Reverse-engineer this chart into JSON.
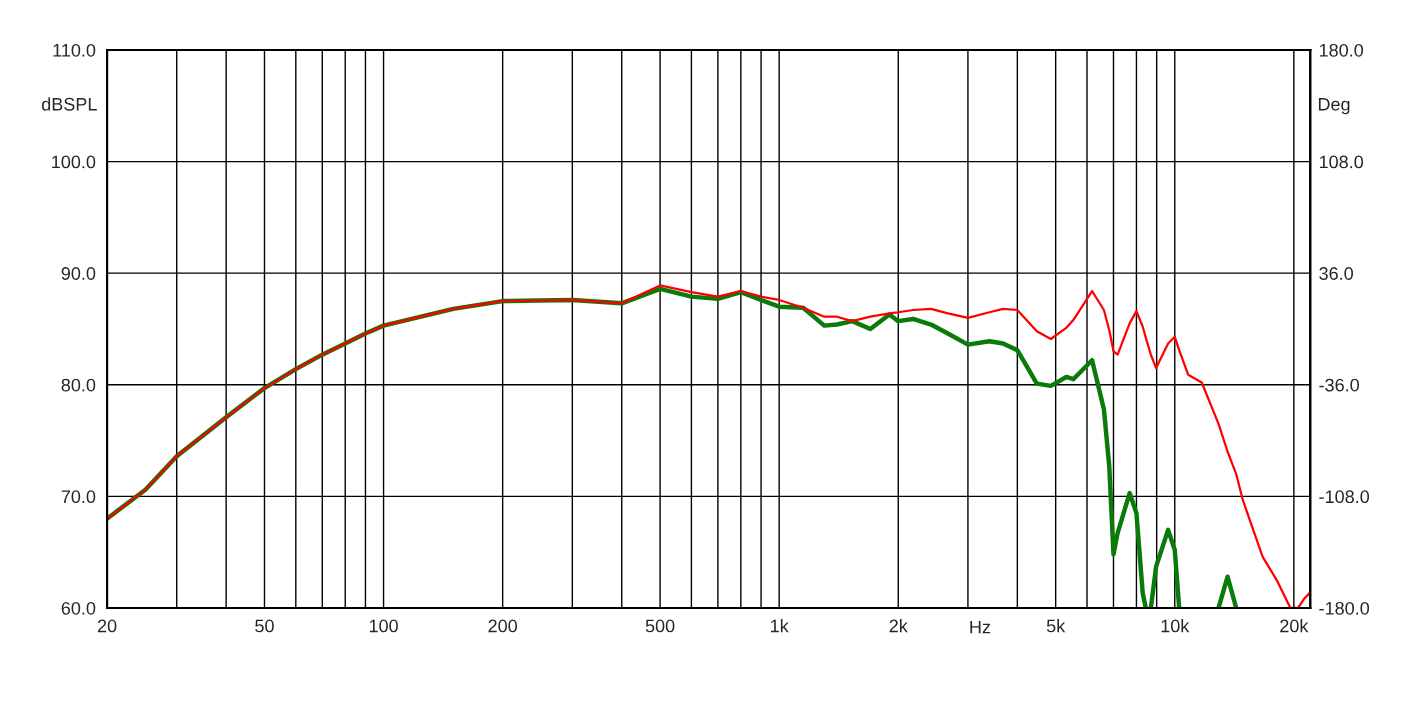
{
  "chart_data": {
    "type": "line",
    "xlabel": "Hz",
    "ylabel": "dBSPL",
    "y2label": "Deg",
    "x": [
      20,
      25,
      30,
      40,
      50,
      60,
      70,
      80,
      90,
      100,
      150,
      200,
      300,
      400,
      500,
      600,
      700,
      800,
      900,
      1000,
      1150,
      1300,
      1400,
      1530,
      1700,
      1900,
      2000,
      2180,
      2420,
      2670,
      3000,
      3400,
      3680,
      4000,
      4480,
      4860,
      5320,
      5540,
      6180,
      6620,
      6830,
      7000,
      7170,
      7690,
      8000,
      8300,
      8450,
      8600,
      8700,
      8970,
      9620,
      10000,
      10260,
      10810,
      11700,
      12900,
      13600,
      14300,
      14850,
      16670,
      18100,
      19600,
      20500,
      21200,
      22000
    ],
    "series": [
      {
        "color": "#ff0000",
        "values": [
          68.0,
          70.6,
          73.6,
          77.1,
          79.7,
          81.4,
          82.7,
          83.7,
          84.6,
          85.3,
          86.8,
          87.5,
          87.6,
          87.3,
          88.9,
          88.3,
          87.9,
          88.4,
          87.9,
          87.6,
          86.9,
          86.1,
          86.1,
          85.7,
          86.1,
          86.4,
          86.5,
          86.7,
          86.8,
          86.4,
          86.0,
          86.5,
          86.8,
          86.7,
          84.8,
          84.1,
          85.1,
          85.8,
          88.4,
          86.7,
          84.9,
          83.0,
          82.7,
          85.5,
          86.6,
          85.2,
          84.2,
          83.3,
          82.7,
          81.5,
          83.7,
          84.3,
          83.1,
          80.9,
          80.2,
          76.5,
          74.0,
          72.0,
          69.7,
          64.6,
          62.5,
          60.0,
          60.0,
          60.8,
          61.4
        ]
      },
      {
        "color": "#0a7a0a",
        "values": [
          68.0,
          70.6,
          73.6,
          77.1,
          79.7,
          81.4,
          82.7,
          83.7,
          84.6,
          85.3,
          86.8,
          87.5,
          87.6,
          87.3,
          88.6,
          87.9,
          87.7,
          88.3,
          87.6,
          87.0,
          86.9,
          85.3,
          85.4,
          85.7,
          85.0,
          86.3,
          85.7,
          85.9,
          85.4,
          84.6,
          83.6,
          83.9,
          83.7,
          83.1,
          80.1,
          79.9,
          80.7,
          80.5,
          82.2,
          77.8,
          72.7,
          64.8,
          66.7,
          70.3,
          68.5,
          61.3,
          60.0,
          null,
          60.0,
          63.7,
          67.0,
          65.2,
          60.0,
          null,
          null,
          60.0,
          62.8,
          60.0,
          null,
          null,
          null,
          null,
          null,
          null,
          null
        ]
      }
    ],
    "log": "x",
    "xlim": [
      20,
      22000
    ],
    "xticks": [
      20,
      {
        "value": 30,
        "label": null
      },
      {
        "value": 40,
        "label": null
      },
      50,
      {
        "value": 60,
        "label": null
      },
      {
        "value": 70,
        "label": null
      },
      {
        "value": 80,
        "label": null
      },
      {
        "value": 90,
        "label": null
      },
      100,
      200,
      {
        "value": 300,
        "label": null
      },
      {
        "value": 400,
        "label": null
      },
      500,
      {
        "value": 600,
        "label": null
      },
      {
        "value": 700,
        "label": null
      },
      {
        "value": 800,
        "label": null
      },
      {
        "value": 900,
        "label": null
      },
      {
        "value": 1000,
        "label": "1k"
      },
      {
        "value": 2000,
        "label": "2k"
      },
      {
        "value": 3000,
        "label": null
      },
      {
        "value": 4000,
        "label": null
      },
      {
        "value": 5000,
        "label": "5k"
      },
      {
        "value": 6000,
        "label": null
      },
      {
        "value": 7000,
        "label": null
      },
      {
        "value": 8000,
        "label": null
      },
      {
        "value": 9000,
        "label": null
      },
      {
        "value": 10000,
        "label": "10k"
      },
      {
        "value": 20000,
        "label": "20k"
      }
    ],
    "ylim": [
      60,
      110
    ],
    "yticks": [
      {
        "value": 60,
        "label": "60.0"
      },
      {
        "value": 70,
        "label": "70.0"
      },
      {
        "value": 80,
        "label": "80.0"
      },
      {
        "value": 90,
        "label": "90.0"
      },
      {
        "value": 100,
        "label": "100.0"
      },
      {
        "value": 110,
        "label": "110.0"
      }
    ],
    "y2lim": [
      -180,
      180
    ],
    "y2ticks": [
      {
        "value": -180,
        "label": "-180.0"
      },
      {
        "value": -108,
        "label": "-108.0"
      },
      {
        "value": -36,
        "label": "-36.0"
      },
      {
        "value": 36,
        "label": "36.0"
      },
      {
        "value": 108,
        "label": "108.0"
      },
      {
        "value": 180,
        "label": "180.0"
      }
    ],
    "grid": true,
    "line_style": "solid",
    "legend": false
  }
}
